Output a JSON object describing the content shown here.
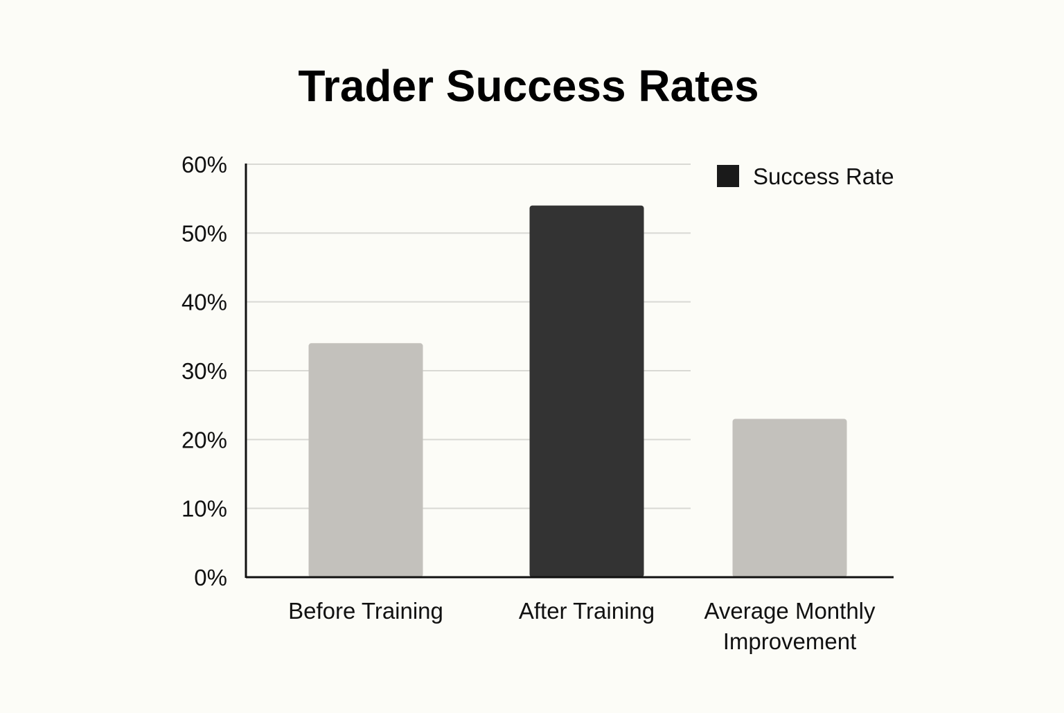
{
  "chart_data": {
    "type": "bar",
    "title": "Trader Success Rates",
    "categories": [
      "Before Training",
      "After Training",
      "Average Monthly Improvement"
    ],
    "series": [
      {
        "name": "Success Rate",
        "values": [
          34,
          54,
          23
        ]
      }
    ],
    "ylim": [
      0,
      60
    ],
    "yticks": [
      0,
      10,
      20,
      30,
      40,
      50,
      60
    ],
    "ytick_labels": [
      "0%",
      "10%",
      "20%",
      "30%",
      "40%",
      "50%",
      "60%"
    ],
    "grid": true,
    "legend_position": "top-right",
    "colors": {
      "background": "#fcfcf7",
      "bar_light": "#c3c1bc",
      "bar_dark": "#333333",
      "legend_swatch": "#1a1a1a"
    },
    "bar_colors": [
      "#c3c1bc",
      "#333333",
      "#c3c1bc"
    ]
  }
}
